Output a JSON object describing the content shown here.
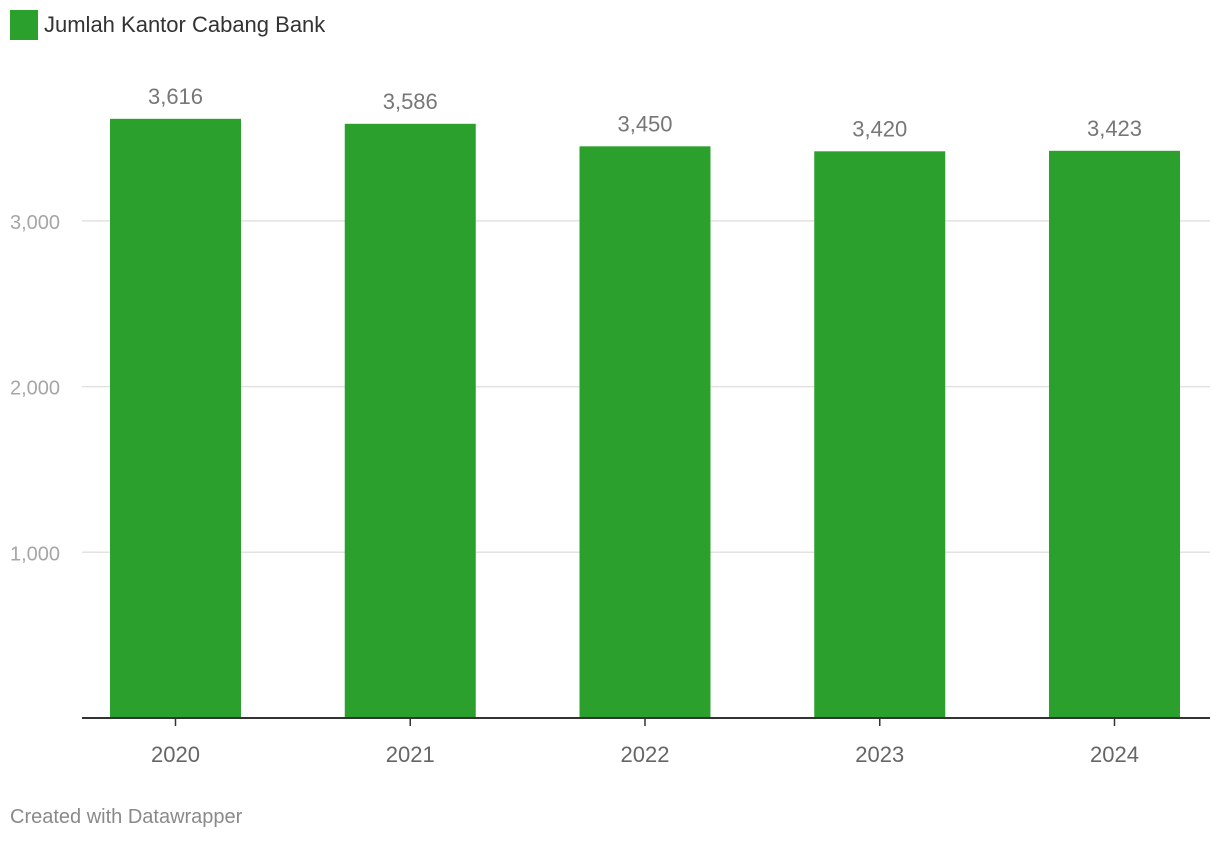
{
  "legend": {
    "label": "Jumlah Kantor Cabang Bank",
    "color": "#2ca02c"
  },
  "footer": {
    "credit": "Created with Datawrapper"
  },
  "chart_data": {
    "type": "bar",
    "categories": [
      "2020",
      "2021",
      "2022",
      "2023",
      "2024"
    ],
    "series": [
      {
        "name": "Jumlah Kantor Cabang Bank",
        "values": [
          3616,
          3586,
          3450,
          3420,
          3423
        ],
        "color": "#2ca02c"
      }
    ],
    "data_labels": [
      "3,616",
      "3,586",
      "3,450",
      "3,420",
      "3,423"
    ],
    "yticks": [
      1000,
      2000,
      3000
    ],
    "ytick_labels": [
      "1,000",
      "2,000",
      "3,000"
    ],
    "ylim": [
      0,
      4000
    ],
    "grid": true,
    "legend_position": "top-left",
    "title": "",
    "xlabel": "",
    "ylabel": ""
  }
}
